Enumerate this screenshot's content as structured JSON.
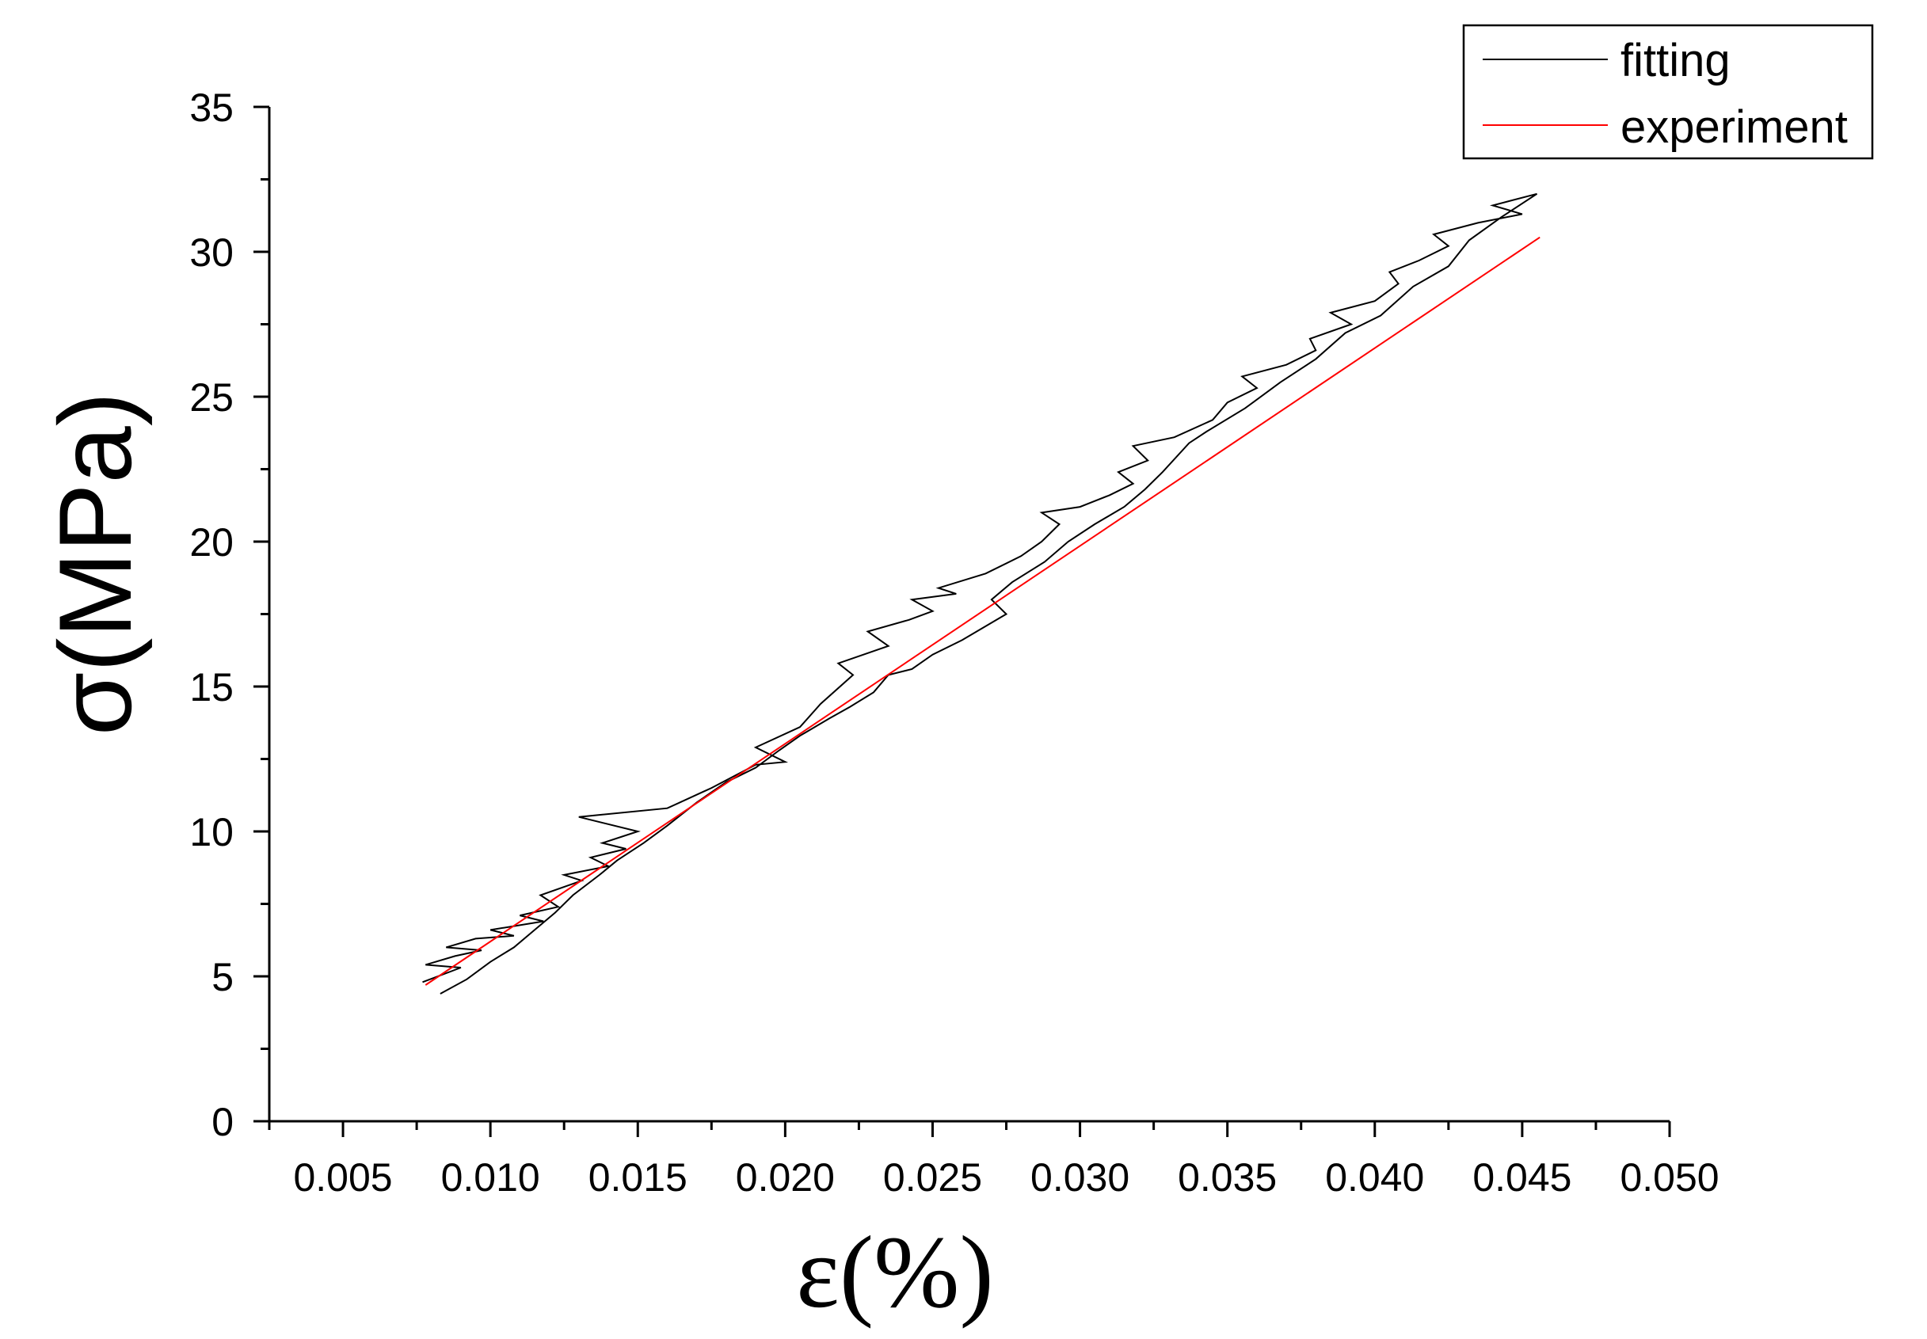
{
  "chart_data": {
    "type": "line",
    "xlabel": "ε(%)",
    "ylabel": "σ(MPa)",
    "xlim": [
      0.0025,
      0.05
    ],
    "ylim": [
      0,
      35
    ],
    "x_ticks": [
      "0.005",
      "0.010",
      "0.015",
      "0.020",
      "0.025",
      "0.030",
      "0.035",
      "0.040",
      "0.045",
      "0.050"
    ],
    "y_ticks": [
      "0",
      "5",
      "10",
      "15",
      "20",
      "25",
      "30",
      "35"
    ],
    "grid": false,
    "legend": "top-right",
    "series": [
      {
        "name": "fitting",
        "color": "#000000",
        "points": [
          [
            0.0077,
            4.8
          ],
          [
            0.009,
            5.3
          ],
          [
            0.0078,
            5.4
          ],
          [
            0.0088,
            5.7
          ],
          [
            0.0097,
            5.9
          ],
          [
            0.0085,
            6.0
          ],
          [
            0.0095,
            6.3
          ],
          [
            0.0108,
            6.4
          ],
          [
            0.01,
            6.6
          ],
          [
            0.0118,
            6.9
          ],
          [
            0.011,
            7.1
          ],
          [
            0.0123,
            7.4
          ],
          [
            0.0117,
            7.8
          ],
          [
            0.0131,
            8.3
          ],
          [
            0.0125,
            8.5
          ],
          [
            0.014,
            8.8
          ],
          [
            0.0134,
            9.1
          ],
          [
            0.0146,
            9.4
          ],
          [
            0.0138,
            9.6
          ],
          [
            0.015,
            10.0
          ],
          [
            0.013,
            10.5
          ],
          [
            0.016,
            10.8
          ],
          [
            0.0175,
            11.5
          ],
          [
            0.019,
            12.3
          ],
          [
            0.02,
            12.4
          ],
          [
            0.019,
            12.9
          ],
          [
            0.0205,
            13.6
          ],
          [
            0.0212,
            14.4
          ],
          [
            0.0223,
            15.4
          ],
          [
            0.0218,
            15.8
          ],
          [
            0.0235,
            16.4
          ],
          [
            0.0228,
            16.9
          ],
          [
            0.0242,
            17.3
          ],
          [
            0.025,
            17.6
          ],
          [
            0.0243,
            18.0
          ],
          [
            0.0258,
            18.2
          ],
          [
            0.0252,
            18.4
          ],
          [
            0.0268,
            18.9
          ],
          [
            0.028,
            19.5
          ],
          [
            0.0287,
            20.0
          ],
          [
            0.0293,
            20.6
          ],
          [
            0.0287,
            21.0
          ],
          [
            0.03,
            21.2
          ],
          [
            0.031,
            21.6
          ],
          [
            0.0318,
            22.0
          ],
          [
            0.0313,
            22.4
          ],
          [
            0.0323,
            22.8
          ],
          [
            0.0318,
            23.3
          ],
          [
            0.0332,
            23.6
          ],
          [
            0.0345,
            24.2
          ],
          [
            0.035,
            24.8
          ],
          [
            0.036,
            25.3
          ],
          [
            0.0355,
            25.7
          ],
          [
            0.037,
            26.1
          ],
          [
            0.038,
            26.6
          ],
          [
            0.0378,
            27.0
          ],
          [
            0.0392,
            27.5
          ],
          [
            0.0385,
            27.9
          ],
          [
            0.04,
            28.3
          ],
          [
            0.0408,
            28.9
          ],
          [
            0.0405,
            29.3
          ],
          [
            0.0415,
            29.7
          ],
          [
            0.0425,
            30.2
          ],
          [
            0.042,
            30.6
          ],
          [
            0.0435,
            31.0
          ],
          [
            0.045,
            31.3
          ],
          [
            0.044,
            31.6
          ],
          [
            0.0455,
            32.0
          ],
          [
            0.0443,
            31.2
          ],
          [
            0.0432,
            30.4
          ],
          [
            0.0425,
            29.5
          ],
          [
            0.0413,
            28.8
          ],
          [
            0.0402,
            27.8
          ],
          [
            0.039,
            27.2
          ],
          [
            0.038,
            26.3
          ],
          [
            0.0368,
            25.5
          ],
          [
            0.0356,
            24.6
          ],
          [
            0.0343,
            23.8
          ],
          [
            0.0337,
            23.4
          ],
          [
            0.0328,
            22.4
          ],
          [
            0.0322,
            21.8
          ],
          [
            0.0315,
            21.2
          ],
          [
            0.0305,
            20.6
          ],
          [
            0.0296,
            20.0
          ],
          [
            0.0288,
            19.3
          ],
          [
            0.0277,
            18.6
          ],
          [
            0.027,
            18.0
          ],
          [
            0.0275,
            17.5
          ],
          [
            0.026,
            16.6
          ],
          [
            0.025,
            16.1
          ],
          [
            0.0243,
            15.6
          ],
          [
            0.0235,
            15.4
          ],
          [
            0.023,
            14.8
          ],
          [
            0.0222,
            14.3
          ],
          [
            0.0215,
            13.9
          ],
          [
            0.0205,
            13.3
          ],
          [
            0.0198,
            12.8
          ],
          [
            0.019,
            12.2
          ],
          [
            0.018,
            11.7
          ],
          [
            0.017,
            11.0
          ],
          [
            0.016,
            10.2
          ],
          [
            0.0152,
            9.6
          ],
          [
            0.0143,
            9.0
          ],
          [
            0.0137,
            8.5
          ],
          [
            0.0128,
            7.8
          ],
          [
            0.0122,
            7.2
          ],
          [
            0.0115,
            6.6
          ],
          [
            0.0108,
            6.0
          ],
          [
            0.01,
            5.5
          ],
          [
            0.0092,
            4.9
          ],
          [
            0.0083,
            4.4
          ]
        ]
      },
      {
        "name": "experiment",
        "color": "#ff0000",
        "points": [
          [
            0.0078,
            4.7
          ],
          [
            0.0456,
            30.5
          ]
        ]
      }
    ]
  }
}
